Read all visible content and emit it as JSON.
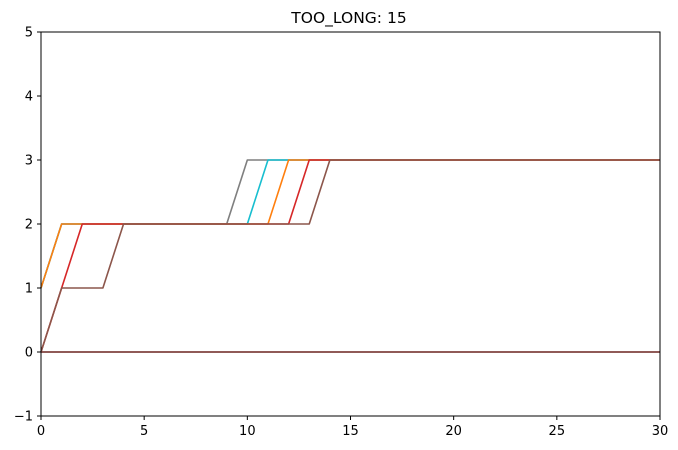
{
  "chart_data": {
    "type": "line",
    "title": "TOO_LONG: 15",
    "xlabel": "",
    "ylabel": "",
    "xlim": [
      0,
      30
    ],
    "ylim": [
      -1,
      5
    ],
    "xticks": [
      0,
      5,
      10,
      15,
      20,
      25,
      30
    ],
    "yticks": [
      -1,
      0,
      1,
      2,
      3,
      4,
      5
    ],
    "grid": false,
    "legend": "none",
    "series": [
      {
        "color": "#1f77b4",
        "x": [
          0,
          30
        ],
        "y": [
          0,
          0
        ]
      },
      {
        "color": "#ff7f0e",
        "x": [
          0,
          30
        ],
        "y": [
          0,
          0
        ]
      },
      {
        "color": "#2ca02c",
        "x": [
          0,
          30
        ],
        "y": [
          0,
          0
        ]
      },
      {
        "color": "#d62728",
        "x": [
          0,
          30
        ],
        "y": [
          0,
          0
        ]
      },
      {
        "color": "#9467bd",
        "x": [
          0,
          30
        ],
        "y": [
          0,
          0
        ]
      },
      {
        "color": "#8c564b",
        "x": [
          0,
          30
        ],
        "y": [
          0,
          0
        ]
      },
      {
        "color": "#7f7f7f",
        "x": [
          0,
          1,
          9,
          10,
          30
        ],
        "y": [
          1,
          2,
          2,
          3,
          3
        ]
      },
      {
        "color": "#17becf",
        "x": [
          0,
          1,
          10,
          11,
          30
        ],
        "y": [
          1,
          2,
          2,
          3,
          3
        ]
      },
      {
        "color": "#ff7f0e",
        "x": [
          0,
          1,
          11,
          12,
          30
        ],
        "y": [
          1,
          2,
          2,
          3,
          3
        ]
      },
      {
        "color": "#d62728",
        "x": [
          0,
          1,
          2,
          12,
          13,
          30
        ],
        "y": [
          0,
          1,
          2,
          2,
          3,
          3
        ]
      },
      {
        "color": "#8c564b",
        "x": [
          0,
          1,
          3,
          4,
          13,
          14,
          30
        ],
        "y": [
          0,
          1,
          1,
          2,
          2,
          3,
          3
        ]
      }
    ]
  }
}
